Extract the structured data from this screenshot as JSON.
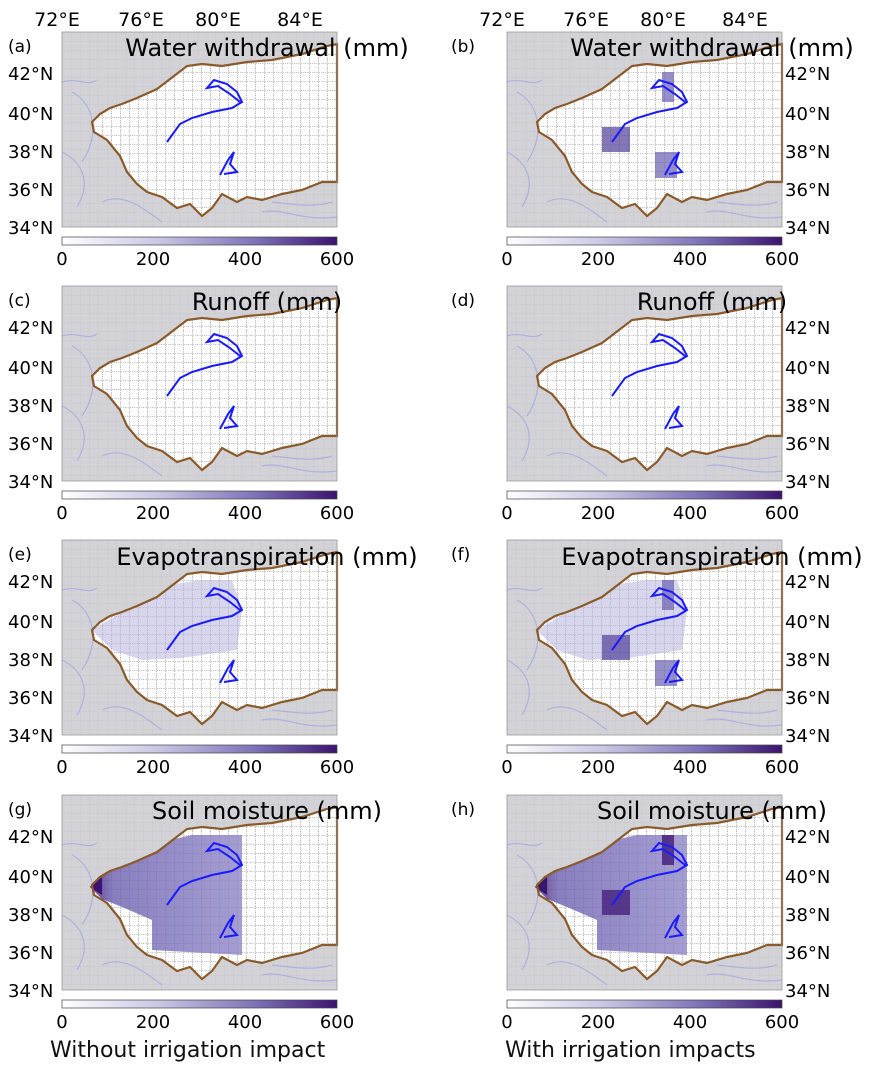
{
  "axes": {
    "lon_labels": [
      "72°E",
      "76°E",
      "80°E",
      "84°E"
    ],
    "lat_labels": [
      "42°N",
      "40°N",
      "38°N",
      "36°N",
      "34°N"
    ]
  },
  "colorbar": {
    "ticks": [
      "0",
      "200",
      "400",
      "600"
    ],
    "range": [
      0,
      600
    ],
    "color_low": "#ffffff",
    "color_high": "#3b1370"
  },
  "panels": [
    {
      "letter": "(a)",
      "title": "Water withdrawal (mm)",
      "variable": "water-withdrawal",
      "scenario": "without-irrigation"
    },
    {
      "letter": "(b)",
      "title": "Water withdrawal (mm)",
      "variable": "water-withdrawal",
      "scenario": "with-irrigation"
    },
    {
      "letter": "(c)",
      "title": "Runoff (mm)",
      "variable": "runoff",
      "scenario": "without-irrigation"
    },
    {
      "letter": "(d)",
      "title": "Runoff (mm)",
      "variable": "runoff",
      "scenario": "with-irrigation"
    },
    {
      "letter": "(e)",
      "title": "Evapotranspiration (mm)",
      "variable": "evapotranspiration",
      "scenario": "without-irrigation"
    },
    {
      "letter": "(f)",
      "title": "Evapotranspiration (mm)",
      "variable": "evapotranspiration",
      "scenario": "with-irrigation"
    },
    {
      "letter": "(g)",
      "title": "Soil moisture (mm)",
      "variable": "soil-moisture",
      "scenario": "without-irrigation"
    },
    {
      "letter": "(h)",
      "title": "Soil moisture (mm)",
      "variable": "soil-moisture",
      "scenario": "with-irrigation"
    }
  ],
  "footer": {
    "left": "Without irrigation impact",
    "right": "With irrigation impacts"
  },
  "colors": {
    "basin_border": "#8b5a2b",
    "river": "#1a1aff",
    "background_map": "#d2d2d6",
    "contour_lines": "#b0b0e0"
  }
}
